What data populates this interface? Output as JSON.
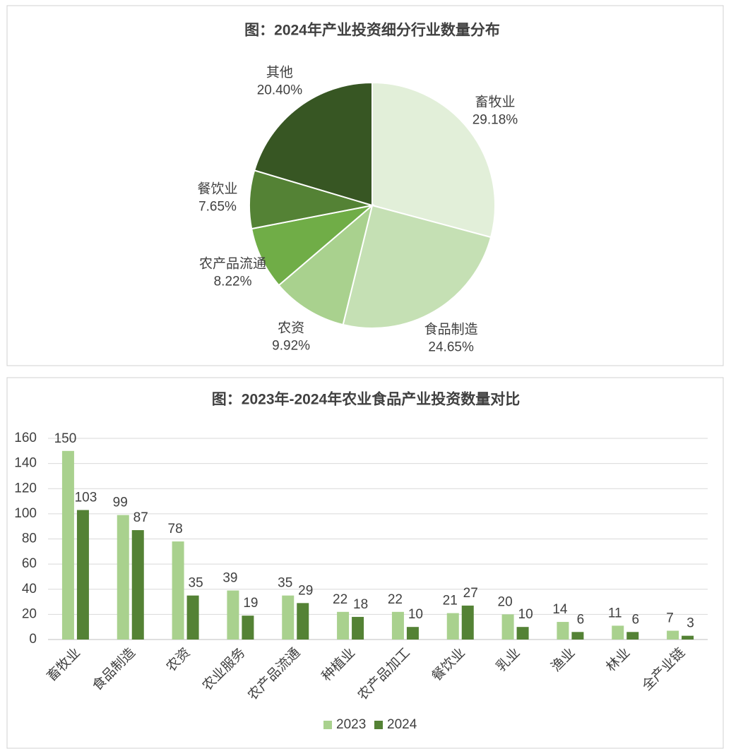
{
  "chart_data": [
    {
      "type": "pie",
      "title": "图：2024年产业投资细分行业数量分布",
      "categories": [
        "畜牧业",
        "食品制造",
        "农资",
        "农产品流通",
        "餐饮业",
        "其他"
      ],
      "values": [
        29.18,
        24.65,
        9.92,
        8.22,
        7.65,
        20.4
      ],
      "value_labels": [
        "29.18%",
        "24.65%",
        "9.92%",
        "8.22%",
        "7.65%",
        "20.40%"
      ],
      "colors": [
        "#e2efd9",
        "#c5e0b4",
        "#a9d18e",
        "#70ad47",
        "#548235",
        "#375623"
      ]
    },
    {
      "type": "bar",
      "title": "图：2023年-2024年农业食品产业投资数量对比",
      "categories": [
        "畜牧业",
        "食品制造",
        "农资",
        "农业服务",
        "农产品流通",
        "种植业",
        "农产品加工",
        "餐饮业",
        "乳业",
        "渔业",
        "林业",
        "全产业链"
      ],
      "series": [
        {
          "name": "2023",
          "color": "#a9d18e",
          "values": [
            150,
            99,
            78,
            39,
            35,
            22,
            22,
            21,
            20,
            14,
            11,
            7
          ]
        },
        {
          "name": "2024",
          "color": "#548235",
          "values": [
            103,
            87,
            35,
            19,
            29,
            18,
            10,
            27,
            10,
            6,
            6,
            3
          ]
        }
      ],
      "ylim": [
        0,
        160
      ],
      "yticks": [
        0,
        20,
        40,
        60,
        80,
        100,
        120,
        140,
        160
      ],
      "grid": true,
      "legend": "bottom"
    }
  ]
}
